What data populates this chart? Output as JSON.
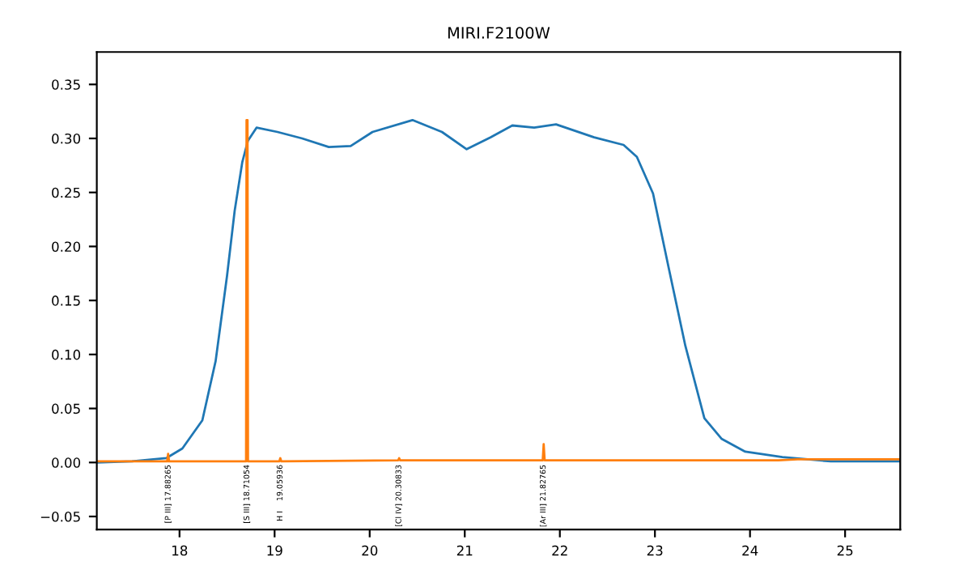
{
  "chart_data": {
    "type": "line",
    "title": "MIRI.F2100W",
    "series": [
      {
        "color": "#1f77b4",
        "x": [
          17.13,
          17.5,
          17.86,
          18.03,
          18.24,
          18.38,
          18.5,
          18.58,
          18.66,
          18.72,
          18.81,
          19.03,
          19.29,
          19.57,
          19.8,
          20.03,
          20.45,
          20.76,
          21.02,
          21.27,
          21.5,
          21.73,
          21.96,
          22.36,
          22.67,
          22.81,
          22.98,
          23.15,
          23.32,
          23.52,
          23.7,
          23.95,
          24.34,
          24.85,
          25.58
        ],
        "values": [
          0.0,
          0.001,
          0.004,
          0.013,
          0.039,
          0.094,
          0.173,
          0.233,
          0.278,
          0.298,
          0.31,
          0.306,
          0.3,
          0.292,
          0.293,
          0.306,
          0.317,
          0.306,
          0.29,
          0.301,
          0.312,
          0.31,
          0.313,
          0.301,
          0.294,
          0.283,
          0.249,
          0.178,
          0.108,
          0.041,
          0.022,
          0.01,
          0.005,
          0.001,
          0.001
        ]
      },
      {
        "color": "#ff7f0e",
        "x": [
          17.13,
          17.87,
          17.88,
          17.89,
          18.7,
          18.705,
          18.715,
          18.72,
          19.05,
          19.06,
          19.07,
          20.3,
          20.31,
          20.32,
          21.82,
          21.83,
          21.84,
          24.3,
          24.5,
          25.58
        ],
        "values": [
          0.001,
          0.001,
          0.008,
          0.001,
          0.001,
          0.317,
          0.317,
          0.001,
          0.001,
          0.004,
          0.001,
          0.002,
          0.004,
          0.002,
          0.002,
          0.017,
          0.002,
          0.002,
          0.003,
          0.003
        ]
      }
    ],
    "xlim": [
      17.13,
      25.58
    ],
    "ylim": [
      -0.062,
      0.38
    ],
    "xticks": [
      18,
      19,
      20,
      21,
      22,
      23,
      24,
      25
    ],
    "yticks": [
      {
        "value": -0.05,
        "label": "−0.05"
      },
      {
        "value": 0,
        "label": "0.00"
      },
      {
        "value": 0.05,
        "label": "0.05"
      },
      {
        "value": 0.1,
        "label": "0.10"
      },
      {
        "value": 0.15,
        "label": "0.15"
      },
      {
        "value": 0.2,
        "label": "0.20"
      },
      {
        "value": 0.25,
        "label": "0.25"
      },
      {
        "value": 0.3,
        "label": "0.30"
      },
      {
        "value": 0.35,
        "label": "0.35"
      }
    ],
    "annotations": [
      {
        "text": "[P III] 17.88265",
        "x": 17.88265,
        "y": 0
      },
      {
        "text": "[S III] 18.71054",
        "x": 18.71054,
        "y": 0
      },
      {
        "text": "H I    19.05936",
        "x": 19.05936,
        "y": 0
      },
      {
        "text": "[Cl IV] 20.30833",
        "x": 20.30833,
        "y": 0
      },
      {
        "text": "[Ar III] 21.82765",
        "x": 21.82765,
        "y": 0
      }
    ],
    "grid": false,
    "legend": false,
    "marker": "none",
    "line_style": "solid"
  }
}
